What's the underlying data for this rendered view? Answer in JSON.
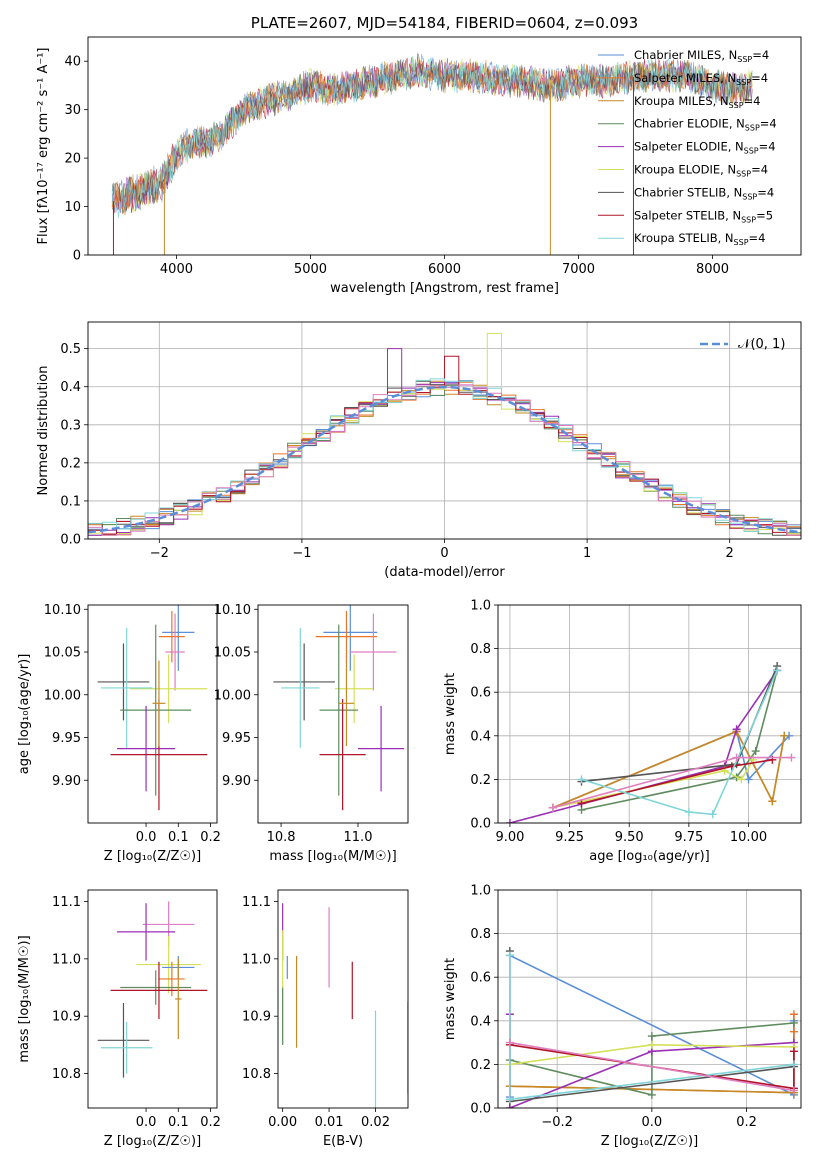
{
  "colors": {
    "Chabrier MILES": "#5b8ed8",
    "Salpeter MILES": "#e8752a",
    "Kroupa MILES": "#c58a27",
    "Chabrier ELODIE": "#5f8c5f",
    "Salpeter ELODIE": "#9a2fb5",
    "Kroupa ELODIE": "#d4e05a",
    "Chabrier STELIB": "#555555",
    "Salpeter STELIB": "#b0152a",
    "Kroupa STELIB": "#80d5d8",
    "pink": "#e07fbf",
    "normal_curve": "#5b8ed8"
  },
  "chart_data": [
    {
      "id": "spectrum",
      "type": "line",
      "title": "PLATE=2607, MJD=54184, FIBERID=0604, z=0.093",
      "xlabel": "wavelength [Angstrom, rest frame]",
      "ylabel": "Flux [fλ10⁻¹⁷ erg cm⁻² s⁻¹ A⁻¹]",
      "xlim": [
        3340,
        8660
      ],
      "ylim": [
        0,
        45
      ],
      "xticks": [
        4000,
        5000,
        6000,
        7000,
        8000
      ],
      "yticks": [
        0,
        10,
        20,
        30,
        40
      ],
      "grid": false,
      "legend_placement": "top-right",
      "legend": [
        "Chabrier MILES, N_SSP=4",
        "Salpeter MILES, N_SSP=4",
        "Kroupa MILES, N_SSP=4",
        "Chabrier ELODIE, N_SSP=4",
        "Salpeter ELODIE, N_SSP=4",
        "Kroupa ELODIE, N_SSP=4",
        "Chabrier STELIB, N_SSP=4",
        "Salpeter STELIB, N_SSP=5",
        "Kroupa STELIB, N_SSP=4"
      ],
      "continuum_points": [
        [
          3520,
          11
        ],
        [
          3700,
          13
        ],
        [
          3900,
          15
        ],
        [
          3980,
          20
        ],
        [
          4100,
          23
        ],
        [
          4300,
          24
        ],
        [
          4500,
          30
        ],
        [
          4800,
          33
        ],
        [
          5000,
          35
        ],
        [
          5200,
          34
        ],
        [
          5500,
          36
        ],
        [
          5800,
          38
        ],
        [
          6000,
          37
        ],
        [
          6200,
          37
        ],
        [
          6500,
          36
        ],
        [
          6800,
          35
        ],
        [
          7000,
          36
        ],
        [
          7200,
          36
        ],
        [
          7500,
          37
        ],
        [
          7800,
          37
        ],
        [
          8000,
          35
        ],
        [
          8200,
          34
        ],
        [
          8300,
          35
        ]
      ],
      "drop_lines": [
        [
          3530,
          "Salpeter STELIB"
        ],
        [
          3910,
          "Kroupa MILES"
        ],
        [
          6790,
          "Kroupa MILES"
        ],
        [
          7410,
          "Salpeter STELIB"
        ]
      ]
    },
    {
      "id": "residuals",
      "type": "line",
      "xlabel": "(data-model)/error",
      "ylabel": "Normed distribution",
      "xlim": [
        -2.5,
        2.5
      ],
      "ylim": [
        0,
        0.57
      ],
      "xticks": [
        -2,
        -1,
        0,
        1,
        2
      ],
      "yticks": [
        0.0,
        0.1,
        0.2,
        0.3,
        0.4,
        0.5
      ],
      "grid": true,
      "legend_placement": "top-right",
      "legend": [
        "𝒩(0, 1)"
      ],
      "hist_bin_width": 0.1,
      "hist_peak_bins": [
        [
          -0.35,
          0.5,
          "Salpeter ELODIE"
        ],
        [
          0.35,
          0.54,
          "Kroupa ELODIE"
        ],
        [
          0.1,
          0.48,
          "Salpeter STELIB"
        ]
      ]
    },
    {
      "id": "age_vs_Z",
      "type": "scatter",
      "xlabel": "Z [log₁₀(Z/Z☉)]",
      "ylabel": "age  [log₁₀(age/yr)]",
      "xlim": [
        -0.18,
        0.22
      ],
      "ylim": [
        9.85,
        10.105
      ],
      "xticks": [
        0.0,
        0.1,
        0.2
      ],
      "yticks": [
        9.9,
        9.95,
        10.0,
        10.05,
        10.1
      ],
      "points": [
        {
          "model": "Chabrier MILES",
          "x": 0.1,
          "y": 10.073,
          "xerr": 0.05,
          "yerr": 0.045
        },
        {
          "model": "Salpeter MILES",
          "x": 0.08,
          "y": 10.068,
          "xerr": 0.04,
          "yerr": 0.03
        },
        {
          "model": "pink",
          "x": 0.09,
          "y": 10.05,
          "xerr": 0.03,
          "yerr": 0.045
        },
        {
          "model": "Chabrier STELIB",
          "x": -0.07,
          "y": 10.015,
          "xerr": 0.08,
          "yerr": 0.045
        },
        {
          "model": "Kroupa ELODIE",
          "x": 0.07,
          "y": 10.007,
          "xerr": 0.12,
          "yerr": 0.04
        },
        {
          "model": "Kroupa STELIB",
          "x": -0.06,
          "y": 10.008,
          "xerr": 0.08,
          "yerr": 0.07
        },
        {
          "model": "Chabrier ELODIE",
          "x": 0.03,
          "y": 9.982,
          "xerr": 0.11,
          "yerr": 0.1
        },
        {
          "model": "Salpeter ELODIE",
          "x": 0.0,
          "y": 9.937,
          "xerr": 0.09,
          "yerr": 0.05
        },
        {
          "model": "Salpeter STELIB",
          "x": 0.04,
          "y": 9.93,
          "xerr": 0.15,
          "yerr": 0.065
        },
        {
          "model": "Kroupa MILES",
          "x": 0.04,
          "y": 9.99,
          "xerr": 0.02,
          "yerr": 0.05
        }
      ]
    },
    {
      "id": "age_vs_mass",
      "type": "scatter",
      "xlabel": "mass [log₁₀(M/M☉)]",
      "ylabel": "",
      "xlim": [
        10.74,
        11.13
      ],
      "ylim": [
        9.85,
        10.105
      ],
      "xticks": [
        10.8,
        11.0
      ],
      "yticks": [
        9.9,
        9.95,
        10.0,
        10.05,
        10.1
      ],
      "points": [
        {
          "model": "Chabrier MILES",
          "x": 10.98,
          "y": 10.073,
          "xerr": 0.07,
          "yerr": 0.045
        },
        {
          "model": "Salpeter MILES",
          "x": 10.97,
          "y": 10.068,
          "xerr": 0.08,
          "yerr": 0.03
        },
        {
          "model": "pink",
          "x": 11.04,
          "y": 10.05,
          "xerr": 0.06,
          "yerr": 0.045
        },
        {
          "model": "Chabrier STELIB",
          "x": 10.86,
          "y": 10.015,
          "xerr": 0.08,
          "yerr": 0.045
        },
        {
          "model": "Kroupa ELODIE",
          "x": 10.99,
          "y": 10.007,
          "xerr": 0.05,
          "yerr": 0.04
        },
        {
          "model": "Kroupa STELIB",
          "x": 10.85,
          "y": 10.008,
          "xerr": 0.05,
          "yerr": 0.07
        },
        {
          "model": "Chabrier ELODIE",
          "x": 10.95,
          "y": 9.982,
          "xerr": 0.05,
          "yerr": 0.1
        },
        {
          "model": "Salpeter ELODIE",
          "x": 11.06,
          "y": 9.937,
          "xerr": 0.06,
          "yerr": 0.05
        },
        {
          "model": "Salpeter STELIB",
          "x": 10.96,
          "y": 9.93,
          "xerr": 0.06,
          "yerr": 0.065
        },
        {
          "model": "Kroupa MILES",
          "x": 10.97,
          "y": 9.99,
          "xerr": 0.02,
          "yerr": 0.05
        }
      ]
    },
    {
      "id": "massweight_vs_age",
      "type": "line",
      "xlabel": "age  [log₁₀(age/yr)]",
      "ylabel": "mass weight",
      "xlim": [
        8.95,
        10.22
      ],
      "ylim": [
        0,
        1
      ],
      "xticks": [
        9.0,
        9.25,
        9.5,
        9.75,
        10.0
      ],
      "yticks": [
        0.0,
        0.2,
        0.4,
        0.6,
        0.8,
        1.0
      ],
      "grid": true,
      "series": [
        {
          "model": "Chabrier MILES",
          "x": [
            9.18,
            9.95,
            10.0,
            10.17
          ],
          "y": [
            0.07,
            0.42,
            0.2,
            0.4
          ]
        },
        {
          "model": "Salpeter MILES",
          "x": [
            9.18,
            9.95,
            10.1,
            10.15
          ],
          "y": [
            0.07,
            0.42,
            0.1,
            0.4
          ]
        },
        {
          "model": "Kroupa MILES",
          "x": [
            9.18,
            9.95,
            10.1,
            10.15
          ],
          "y": [
            0.07,
            0.42,
            0.1,
            0.4
          ]
        },
        {
          "model": "Chabrier ELODIE",
          "x": [
            9.3,
            9.95,
            10.03,
            10.12
          ],
          "y": [
            0.06,
            0.21,
            0.33,
            0.7
          ]
        },
        {
          "model": "Salpeter ELODIE",
          "x": [
            9.0,
            9.9,
            9.95,
            10.12
          ],
          "y": [
            0.0,
            0.26,
            0.43,
            0.7
          ]
        },
        {
          "model": "Kroupa ELODIE",
          "x": [
            9.18,
            9.9,
            9.97,
            10.02
          ],
          "y": [
            0.07,
            0.24,
            0.2,
            0.29
          ]
        },
        {
          "model": "Chabrier STELIB",
          "x": [
            9.3,
            9.95,
            10.12
          ],
          "y": [
            0.19,
            0.27,
            0.72
          ]
        },
        {
          "model": "Salpeter STELIB",
          "x": [
            9.3,
            9.93,
            10.1
          ],
          "y": [
            0.09,
            0.26,
            0.29
          ]
        },
        {
          "model": "Kroupa STELIB",
          "x": [
            9.3,
            9.75,
            9.85,
            10.12
          ],
          "y": [
            0.2,
            0.05,
            0.04,
            0.7
          ]
        },
        {
          "model": "pink",
          "x": [
            9.18,
            9.95,
            10.18
          ],
          "y": [
            0.07,
            0.3,
            0.3
          ]
        }
      ]
    },
    {
      "id": "mass_vs_Z",
      "type": "scatter",
      "xlabel": "Z [log₁₀(Z/Z☉)]",
      "ylabel": "mass [log₁₀(M/M☉)]",
      "xlim": [
        -0.18,
        0.22
      ],
      "ylim": [
        10.74,
        11.12
      ],
      "xticks": [
        0.0,
        0.1,
        0.2
      ],
      "yticks": [
        10.8,
        10.9,
        11.0,
        11.1
      ],
      "points": [
        {
          "model": "pink",
          "x": 0.07,
          "y": 11.06,
          "xerr": 0.08,
          "yerr": 0.04
        },
        {
          "model": "Salpeter ELODIE",
          "x": 0.0,
          "y": 11.047,
          "xerr": 0.09,
          "yerr": 0.05
        },
        {
          "model": "Kroupa ELODIE",
          "x": 0.07,
          "y": 10.99,
          "xerr": 0.1,
          "yerr": 0.05
        },
        {
          "model": "Chabrier MILES",
          "x": 0.1,
          "y": 10.985,
          "xerr": 0.05,
          "yerr": 0.02
        },
        {
          "model": "Salpeter MILES",
          "x": 0.08,
          "y": 10.965,
          "xerr": 0.04,
          "yerr": 0.03
        },
        {
          "model": "Chabrier ELODIE",
          "x": 0.03,
          "y": 10.95,
          "xerr": 0.11,
          "yerr": 0.03
        },
        {
          "model": "Salpeter STELIB",
          "x": 0.04,
          "y": 10.945,
          "xerr": 0.15,
          "yerr": 0.05
        },
        {
          "model": "Chabrier STELIB",
          "x": -0.07,
          "y": 10.858,
          "xerr": 0.08,
          "yerr": 0.065
        },
        {
          "model": "Kroupa STELIB",
          "x": -0.06,
          "y": 10.845,
          "xerr": 0.08,
          "yerr": 0.045
        },
        {
          "model": "Kroupa MILES",
          "x": 0.1,
          "y": 10.93,
          "xerr": 0.01,
          "yerr": 0.07
        }
      ]
    },
    {
      "id": "mass_vs_EBV",
      "type": "scatter",
      "xlabel": "E(B-V)",
      "ylabel": "",
      "xlim": [
        -0.001,
        0.027
      ],
      "ylim": [
        10.74,
        11.12
      ],
      "xticks": [
        0.0,
        0.01,
        0.02
      ],
      "yticks": [
        10.8,
        10.9,
        11.0,
        11.1
      ],
      "points": [
        {
          "model": "Salpeter ELODIE",
          "x": 0.0,
          "y": 11.047,
          "xerr": 0,
          "yerr": 0.05
        },
        {
          "model": "pink",
          "x": 0.01,
          "y": 11.02,
          "xerr": 0,
          "yerr": 0.07
        },
        {
          "model": "Chabrier MILES",
          "x": 0.001,
          "y": 10.985,
          "xerr": 0,
          "yerr": 0.02
        },
        {
          "model": "Kroupa ELODIE",
          "x": 0.0,
          "y": 10.95,
          "xerr": 0,
          "yerr": 0.1
        },
        {
          "model": "Salpeter STELIB",
          "x": 0.015,
          "y": 10.945,
          "xerr": 0,
          "yerr": 0.05
        },
        {
          "model": "Kroupa MILES",
          "x": 0.003,
          "y": 10.925,
          "xerr": 0,
          "yerr": 0.08
        },
        {
          "model": "Chabrier STELIB",
          "x": 0.027,
          "y": 10.845,
          "xerr": 0,
          "yerr": 0.08
        },
        {
          "model": "Kroupa STELIB",
          "x": 0.02,
          "y": 10.82,
          "xerr": 0,
          "yerr": 0.09
        },
        {
          "model": "Chabrier ELODIE",
          "x": 0.0,
          "y": 10.9,
          "xerr": 0,
          "yerr": 0.05
        }
      ]
    },
    {
      "id": "massweight_vs_Z",
      "type": "line",
      "xlabel": "Z [log₁₀(Z/Z☉)]",
      "ylabel": "mass weight",
      "xlim": [
        -0.325,
        0.315
      ],
      "ylim": [
        0,
        1
      ],
      "xticks": [
        -0.2,
        0.0,
        0.2
      ],
      "yticks": [
        0.0,
        0.2,
        0.4,
        0.6,
        0.8,
        1.0
      ],
      "grid": true,
      "series": [
        {
          "model": "Chabrier MILES",
          "x": [
            -0.3,
            -0.3,
            0.3,
            0.3
          ],
          "y": [
            0.05,
            0.7,
            0.06,
            0.4
          ]
        },
        {
          "model": "Salpeter MILES",
          "x": [
            -0.3,
            0.3,
            0.3,
            0.3
          ],
          "y": [
            0.1,
            0.07,
            0.35,
            0.43
          ]
        },
        {
          "model": "Kroupa MILES",
          "x": [
            -0.3,
            0.3
          ],
          "y": [
            0.1,
            0.07
          ]
        },
        {
          "model": "Chabrier ELODIE",
          "x": [
            -0.3,
            0.0,
            0.0,
            0.3
          ],
          "y": [
            0.22,
            0.06,
            0.33,
            0.39
          ]
        },
        {
          "model": "Salpeter ELODIE",
          "x": [
            -0.3,
            -0.3,
            0.0,
            0.3
          ],
          "y": [
            0.43,
            0.0,
            0.26,
            0.3
          ]
        },
        {
          "model": "Kroupa ELODIE",
          "x": [
            -0.3,
            0.0,
            0.3
          ],
          "y": [
            0.2,
            0.29,
            0.28
          ]
        },
        {
          "model": "Chabrier STELIB",
          "x": [
            -0.3,
            -0.3,
            0.3
          ],
          "y": [
            0.72,
            0.03,
            0.19
          ]
        },
        {
          "model": "Salpeter STELIB",
          "x": [
            -0.3,
            0.3,
            0.3
          ],
          "y": [
            0.29,
            0.09,
            0.26
          ]
        },
        {
          "model": "Kroupa STELIB",
          "x": [
            -0.3,
            -0.3,
            0.3
          ],
          "y": [
            0.7,
            0.04,
            0.2
          ]
        },
        {
          "model": "pink",
          "x": [
            -0.3,
            0.3
          ],
          "y": [
            0.3,
            0.08
          ]
        }
      ]
    }
  ]
}
